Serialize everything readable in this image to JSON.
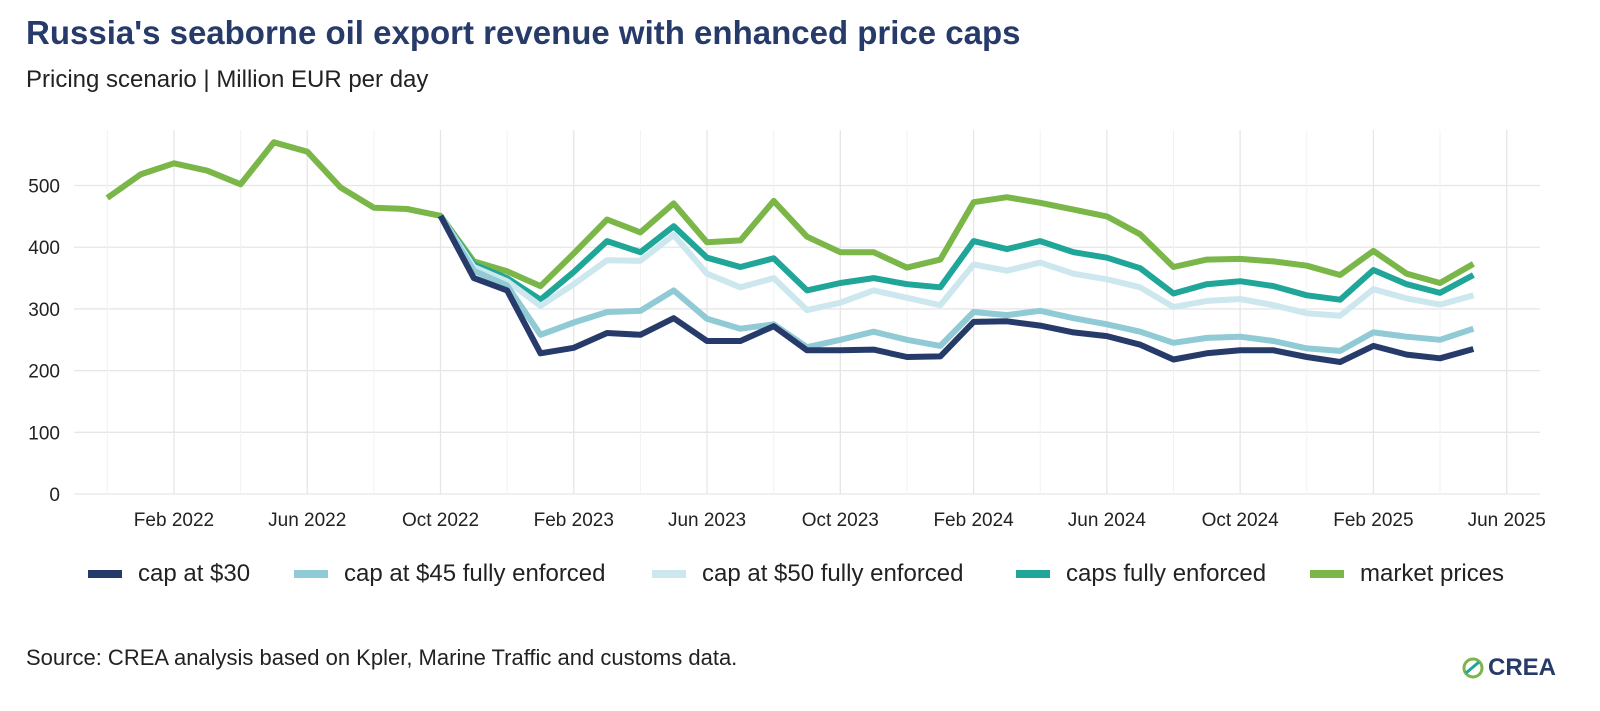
{
  "header": {
    "title": "Russia's seaborne oil export revenue with enhanced price caps",
    "subtitle": "Pricing scenario | Million EUR per day"
  },
  "footer": {
    "source": "Source: CREA analysis based on Kpler, Marine Traffic and customs data.",
    "brand": "CREA",
    "brand_icon": "crea-leaf-icon"
  },
  "chart_data": {
    "type": "line",
    "title": "Russia's seaborne oil export revenue with enhanced price caps",
    "subtitle": "Pricing scenario | Million EUR per day",
    "xlabel": "",
    "ylabel": "",
    "x": [
      "2021-12",
      "2022-01",
      "2022-02",
      "2022-03",
      "2022-04",
      "2022-05",
      "2022-06",
      "2022-07",
      "2022-08",
      "2022-09",
      "2022-10",
      "2022-11",
      "2022-12",
      "2023-01",
      "2023-02",
      "2023-03",
      "2023-04",
      "2023-05",
      "2023-06",
      "2023-07",
      "2023-08",
      "2023-09",
      "2023-10",
      "2023-11",
      "2023-12",
      "2024-01",
      "2024-02",
      "2024-03",
      "2024-04",
      "2024-05",
      "2024-06",
      "2024-07",
      "2024-08",
      "2024-09",
      "2024-10",
      "2024-11",
      "2024-12",
      "2025-01",
      "2025-02",
      "2025-03",
      "2025-04",
      "2025-05",
      "2025-06"
    ],
    "xticks": [
      {
        "date": "2022-02",
        "label": "Feb 2022"
      },
      {
        "date": "2022-06",
        "label": "Jun 2022"
      },
      {
        "date": "2022-10",
        "label": "Oct 2022"
      },
      {
        "date": "2023-02",
        "label": "Feb 2023"
      },
      {
        "date": "2023-06",
        "label": "Jun 2023"
      },
      {
        "date": "2023-10",
        "label": "Oct 2023"
      },
      {
        "date": "2024-02",
        "label": "Feb 2024"
      },
      {
        "date": "2024-06",
        "label": "Jun 2024"
      },
      {
        "date": "2024-10",
        "label": "Oct 2024"
      },
      {
        "date": "2025-02",
        "label": "Feb 2025"
      },
      {
        "date": "2025-06",
        "label": "Jun 2025"
      }
    ],
    "yticks": [
      0,
      100,
      200,
      300,
      400,
      500
    ],
    "ylim": [
      0,
      590
    ],
    "xlim": [
      "2021-11",
      "2025-07"
    ],
    "grid": true,
    "legend_position": "bottom",
    "series": [
      {
        "name": "market prices",
        "color": "#7ab648",
        "values": [
          480,
          518,
          536,
          524,
          502,
          570,
          555,
          497,
          464,
          462,
          451,
          377,
          361,
          337,
          390,
          445,
          424,
          471,
          408,
          411,
          475,
          417,
          392,
          392,
          367,
          380,
          473,
          481,
          472,
          461,
          450,
          421,
          368,
          380,
          381,
          377,
          370,
          355,
          394,
          357,
          342,
          373,
          null
        ]
      },
      {
        "name": "caps fully enforced",
        "color": "#1fa699",
        "values": [
          null,
          null,
          null,
          null,
          null,
          null,
          null,
          null,
          null,
          null,
          451,
          372,
          350,
          315,
          360,
          410,
          392,
          434,
          383,
          368,
          382,
          330,
          342,
          350,
          340,
          335,
          410,
          397,
          410,
          392,
          383,
          366,
          325,
          340,
          345,
          337,
          322,
          315,
          363,
          340,
          326,
          355,
          null
        ]
      },
      {
        "name": "cap at $50 fully enforced",
        "color": "#cce7ee",
        "values": [
          null,
          null,
          null,
          null,
          null,
          null,
          null,
          null,
          null,
          null,
          451,
          368,
          345,
          305,
          340,
          379,
          378,
          420,
          357,
          335,
          350,
          298,
          310,
          330,
          318,
          306,
          372,
          362,
          375,
          357,
          348,
          335,
          303,
          313,
          316,
          306,
          293,
          289,
          332,
          317,
          307,
          322,
          null
        ]
      },
      {
        "name": "cap at $45 fully enforced",
        "color": "#8fcad5",
        "values": [
          null,
          null,
          null,
          null,
          null,
          null,
          null,
          null,
          null,
          null,
          451,
          362,
          338,
          258,
          278,
          295,
          297,
          330,
          284,
          268,
          275,
          238,
          250,
          263,
          250,
          240,
          295,
          290,
          297,
          285,
          275,
          263,
          245,
          253,
          255,
          248,
          236,
          232,
          262,
          255,
          250,
          268,
          null
        ]
      },
      {
        "name": "cap at $30",
        "color": "#273b6b",
        "values": [
          null,
          null,
          null,
          null,
          null,
          null,
          null,
          null,
          null,
          null,
          451,
          350,
          330,
          228,
          237,
          261,
          258,
          285,
          248,
          248,
          272,
          233,
          233,
          234,
          222,
          223,
          279,
          280,
          273,
          262,
          256,
          242,
          218,
          228,
          233,
          233,
          222,
          214,
          240,
          226,
          220,
          235,
          null
        ]
      }
    ]
  }
}
